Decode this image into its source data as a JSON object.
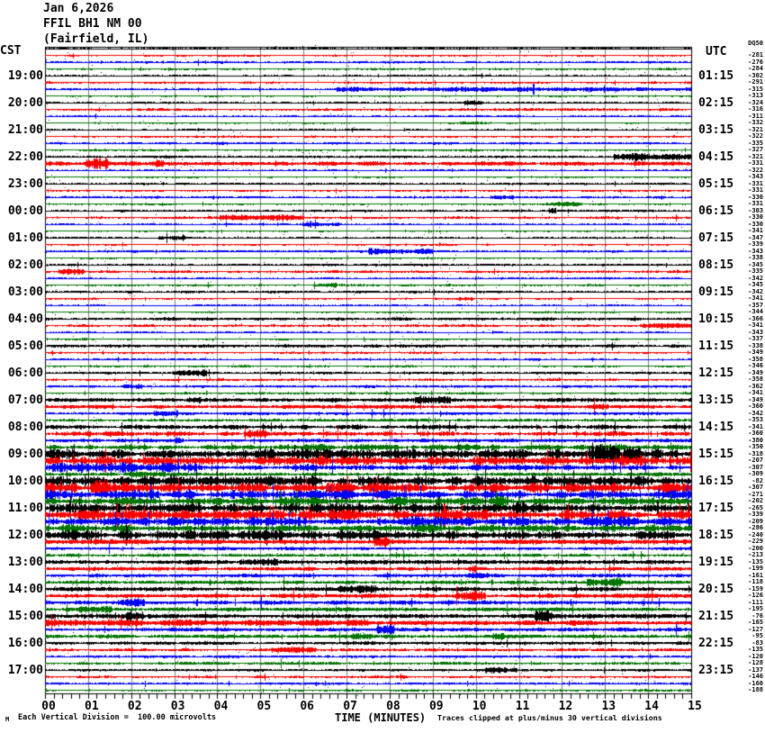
{
  "station": {
    "date_line": "Jan 6,2026",
    "station_line": "FFIL BH1 NM 00",
    "location_line": "(Fairfield, IL)"
  },
  "axes": {
    "left_tz": "CST",
    "right_tz": "UTC",
    "left_labels": [
      "19:00",
      "20:00",
      "21:00",
      "22:00",
      "23:00",
      "00:00",
      "01:00",
      "02:00",
      "03:00",
      "04:00",
      "05:00",
      "06:00",
      "07:00",
      "08:00",
      "09:00",
      "10:00",
      "11:00",
      "12:00",
      "13:00",
      "14:00",
      "15:00",
      "16:00",
      "17:00"
    ],
    "right_labels": [
      "01:15",
      "02:15",
      "03:15",
      "04:15",
      "05:15",
      "06:15",
      "07:15",
      "08:15",
      "09:15",
      "10:15",
      "11:15",
      "12:15",
      "13:15",
      "14:15",
      "15:15",
      "16:15",
      "17:15",
      "18:15",
      "19:15",
      "20:15",
      "21:15",
      "22:15",
      "23:15"
    ],
    "x_labels": [
      "00",
      "01",
      "02",
      "03",
      "04",
      "05",
      "06",
      "07",
      "08",
      "09",
      "10",
      "11",
      "12",
      "13",
      "14",
      "15"
    ],
    "x_title": "TIME (MINUTES)"
  },
  "footer": {
    "marker": "M",
    "left_note": "Each Vertical Division =  100.00 microvolts",
    "right_note": "Traces clipped at plus/minus 30 vertical divisions"
  },
  "right_column": {
    "header": "DQ50",
    "values": [
      -281,
      -276,
      -284,
      -302,
      -291,
      -315,
      -313,
      -324,
      -316,
      -311,
      -332,
      -321,
      -322,
      -335,
      -327,
      -321,
      -331,
      -322,
      -343,
      -331,
      -331,
      -330,
      -331,
      -303,
      -330,
      -330,
      -341,
      -347,
      -339,
      -343,
      -338,
      -345,
      -335,
      -342,
      -345,
      -342,
      -341,
      -357,
      -344,
      -366,
      -341,
      -343,
      -337,
      -338,
      -349,
      -358,
      -346,
      -349,
      -358,
      -362,
      -341,
      -349,
      -360,
      -342,
      -353,
      -341,
      -360,
      -380,
      -350,
      -318,
      -207,
      -307,
      -309,
      -82,
      -307,
      -271,
      -202,
      -265,
      -339,
      -209,
      -286,
      -240,
      -229,
      -200,
      -213,
      -135,
      -199,
      -161,
      -118,
      -159,
      -126,
      -111,
      -195,
      -76,
      -165,
      -127,
      -95,
      -83,
      -135,
      -120,
      -128,
      -137,
      -146,
      -160,
      -188
    ]
  },
  "chart_data": {
    "type": "heliplot",
    "title": "FFIL BH1 NM 00 (Fairfield, IL) Jan 6,2026",
    "minutes_per_line": 15,
    "lines_per_hour": 4,
    "hours": 24,
    "xlabel": "TIME (MINUTES)",
    "x_range_minutes": [
      0,
      15
    ],
    "division_microvolts": 100.0,
    "clip_divisions": 30,
    "colors": {
      "cycle": [
        "#000000",
        "#fa0000",
        "#0000fa",
        "#007300"
      ],
      "grid": "#808080",
      "frame": "#000000"
    },
    "trace_amps": [
      1.0,
      1.0,
      1.2,
      1.1,
      1.0,
      1.1,
      1.1,
      0.9,
      1.1,
      1.3,
      1.0,
      0.9,
      1.0,
      1.1,
      1.2,
      1.1,
      1.4,
      2.3,
      1.0,
      1.0,
      1.2,
      1.0,
      1.2,
      1.0,
      1.2,
      1.2,
      1.0,
      0.9,
      1.0,
      1.0,
      1.2,
      0.9,
      1.2,
      1.3,
      1.0,
      1.1,
      1.3,
      1.0,
      1.0,
      1.0,
      1.5,
      1.3,
      1.0,
      1.0,
      1.6,
      1.1,
      1.0,
      1.1,
      1.3,
      1.2,
      1.3,
      1.1,
      2.0,
      2.0,
      1.5,
      1.5,
      2.6,
      2.8,
      1.8,
      3.4,
      5.5,
      5.0,
      3.2,
      1.8,
      5.5,
      5.5,
      5.0,
      4.5,
      5.5,
      6.0,
      5.5,
      4.2,
      4.2,
      2.4,
      1.6,
      1.6,
      2.2,
      1.9,
      1.8,
      1.8,
      2.1,
      2.2,
      2.1,
      2.0,
      2.4,
      2.4,
      1.9,
      1.8,
      1.7,
      1.5,
      1.4,
      1.4,
      1.3,
      1.2,
      1.2,
      1.1
    ],
    "trace_bursts": {
      "6": [
        [
          0.45,
          1.0,
          2.2
        ]
      ],
      "16": [
        [
          0.88,
          1.0,
          3.2
        ]
      ],
      "25": [
        [
          0.27,
          0.4,
          2.4
        ]
      ],
      "30": [
        [
          0.5,
          0.6,
          2.6
        ]
      ],
      "33": [
        [
          0.02,
          0.06,
          3.0
        ]
      ],
      "41": [
        [
          0.92,
          1.0,
          2.6
        ]
      ],
      "60": [
        [
          0.84,
          0.92,
          1.8
        ]
      ],
      "62": [
        [
          0.0,
          0.25,
          1.8
        ]
      ],
      "72": [
        [
          0.0,
          0.55,
          1.3
        ]
      ],
      "76": [
        [
          0.3,
          0.36,
          2.2
        ]
      ],
      "85": [
        [
          0.0,
          0.5,
          1.5
        ]
      ],
      "89": [
        [
          0.35,
          0.42,
          2.2
        ]
      ],
      "92": [
        [
          0.68,
          0.73,
          2.5
        ]
      ]
    }
  }
}
